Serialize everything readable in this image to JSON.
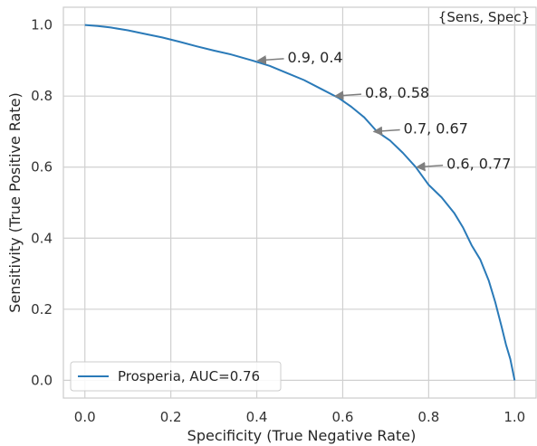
{
  "chart_data": {
    "type": "line",
    "xlabel": "Specificity (True Negative Rate)",
    "ylabel": "Sensitivity (True Positive Rate)",
    "xlim": [
      -0.05,
      1.05
    ],
    "ylim": [
      -0.05,
      1.05
    ],
    "xticks": [
      "0.0",
      "0.2",
      "0.4",
      "0.6",
      "0.8",
      "1.0"
    ],
    "yticks": [
      "0.0",
      "0.2",
      "0.4",
      "0.6",
      "0.8",
      "1.0"
    ],
    "corner_label": "{Sens, Spec}",
    "grid": true,
    "legend_position": "lower-left",
    "series": [
      {
        "name": "Prosperia, AUC=0.76",
        "color": "#2a7ab8",
        "points": [
          [
            0.0,
            1.0
          ],
          [
            0.03,
            0.997
          ],
          [
            0.06,
            0.993
          ],
          [
            0.1,
            0.985
          ],
          [
            0.14,
            0.975
          ],
          [
            0.18,
            0.965
          ],
          [
            0.22,
            0.953
          ],
          [
            0.26,
            0.94
          ],
          [
            0.3,
            0.928
          ],
          [
            0.34,
            0.917
          ],
          [
            0.39,
            0.9
          ],
          [
            0.43,
            0.885
          ],
          [
            0.47,
            0.865
          ],
          [
            0.51,
            0.845
          ],
          [
            0.55,
            0.82
          ],
          [
            0.59,
            0.795
          ],
          [
            0.62,
            0.77
          ],
          [
            0.65,
            0.74
          ],
          [
            0.68,
            0.7
          ],
          [
            0.71,
            0.675
          ],
          [
            0.74,
            0.64
          ],
          [
            0.77,
            0.6
          ],
          [
            0.8,
            0.55
          ],
          [
            0.83,
            0.515
          ],
          [
            0.86,
            0.47
          ],
          [
            0.88,
            0.43
          ],
          [
            0.9,
            0.38
          ],
          [
            0.92,
            0.34
          ],
          [
            0.94,
            0.28
          ],
          [
            0.955,
            0.22
          ],
          [
            0.97,
            0.15
          ],
          [
            0.98,
            0.1
          ],
          [
            0.99,
            0.06
          ],
          [
            0.995,
            0.03
          ],
          [
            1.0,
            0.0
          ]
        ]
      }
    ],
    "annotations": [
      {
        "text": "0.9, 0.4",
        "x": 0.4,
        "y": 0.9
      },
      {
        "text": "0.8, 0.58",
        "x": 0.58,
        "y": 0.8
      },
      {
        "text": "0.7, 0.67",
        "x": 0.67,
        "y": 0.7
      },
      {
        "text": "0.6, 0.77",
        "x": 0.77,
        "y": 0.6
      }
    ]
  }
}
